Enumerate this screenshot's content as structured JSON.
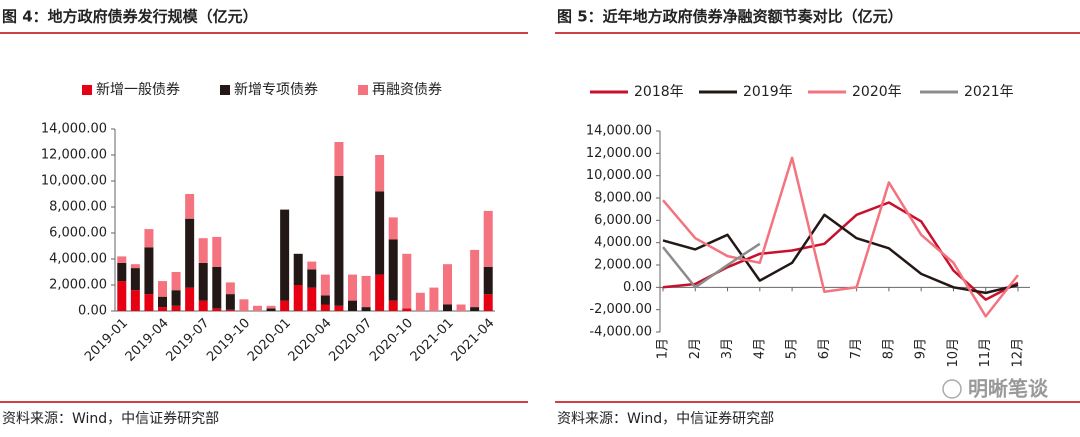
{
  "chart_data": [
    {
      "type": "bar",
      "stacked": true,
      "title": "图 4：地方政府债券发行规模（亿元）",
      "source": "资料来源：Wind，中信证券研究部",
      "categories": [
        "2019-01",
        null,
        null,
        "2019-04",
        null,
        null,
        "2019-07",
        null,
        null,
        "2019-10",
        null,
        null,
        "2020-01",
        null,
        null,
        "2020-04",
        null,
        null,
        "2020-07",
        null,
        null,
        "2020-10",
        null,
        null,
        "2021-01",
        null,
        null,
        "2021-04"
      ],
      "series": [
        {
          "name": "新增一般债券",
          "color": "#e60012",
          "values": [
            2300,
            1600,
            1300,
            300,
            400,
            1800,
            800,
            200,
            100,
            0,
            0,
            0,
            800,
            2000,
            1800,
            500,
            400,
            0,
            0,
            2800,
            800,
            200,
            0,
            0,
            0,
            0,
            0,
            1300
          ]
        },
        {
          "name": "新增专项债券",
          "color": "#231815",
          "values": [
            1400,
            1700,
            3600,
            800,
            1200,
            5300,
            2900,
            3200,
            1200,
            0,
            0,
            200,
            7000,
            2400,
            1400,
            700,
            10000,
            800,
            300,
            6400,
            4700,
            0,
            0,
            0,
            500,
            0,
            300,
            2100
          ]
        },
        {
          "name": "再融资债券",
          "color": "#f4737f",
          "values": [
            500,
            300,
            1400,
            1200,
            1400,
            1900,
            1900,
            2300,
            900,
            900,
            400,
            200,
            0,
            0,
            600,
            1600,
            2600,
            2000,
            2400,
            2800,
            1700,
            4200,
            1400,
            1800,
            3100,
            500,
            4400,
            4300
          ]
        }
      ],
      "ylim": [
        0,
        14000
      ],
      "yticks": [
        {
          "value": 0,
          "label": "0.00"
        },
        {
          "value": 2000,
          "label": "2,000.00"
        },
        {
          "value": 4000,
          "label": "4,000.00"
        },
        {
          "value": 6000,
          "label": "6,000.00"
        },
        {
          "value": 8000,
          "label": "8,000.00"
        },
        {
          "value": 10000,
          "label": "10,000.00"
        },
        {
          "value": 12000,
          "label": "12,000.00"
        },
        {
          "value": 14000,
          "label": "14,000.00"
        }
      ],
      "legend": "top"
    },
    {
      "type": "line",
      "title": "图 5：近年地方政府债券净融资额节奏对比（亿元）",
      "source": "资料来源：Wind，中信证券研究部",
      "categories": [
        "1月",
        "2月",
        "3月",
        "4月",
        "5月",
        "6月",
        "7月",
        "8月",
        "9月",
        "10月",
        "11月",
        "12月"
      ],
      "series": [
        {
          "name": "2018年",
          "color": "#c8102e",
          "values": [
            0,
            300,
            1800,
            3000,
            3300,
            3900,
            6500,
            7600,
            5900,
            1500,
            -1100,
            400
          ]
        },
        {
          "name": "2019年",
          "color": "#231815",
          "values": [
            4200,
            3400,
            4700,
            600,
            2200,
            6500,
            4400,
            3500,
            1200,
            0,
            -500,
            200
          ]
        },
        {
          "name": "2020年",
          "color": "#f4737f",
          "values": [
            7800,
            4400,
            2800,
            2200,
            11600,
            -400,
            0,
            9400,
            4700,
            2200,
            -2600,
            1100
          ]
        },
        {
          "name": "2021年",
          "color": "#8c8c8c",
          "values": [
            3600,
            0,
            2000,
            3900,
            null,
            null,
            null,
            null,
            null,
            null,
            null,
            null
          ]
        }
      ],
      "ylim": [
        -4000,
        14000
      ],
      "yticks": [
        {
          "value": -4000,
          "label": "-4,000.00"
        },
        {
          "value": -2000,
          "label": "-2,000.00"
        },
        {
          "value": 0,
          "label": "0.00"
        },
        {
          "value": 2000,
          "label": "2,000.00"
        },
        {
          "value": 4000,
          "label": "4,000.00"
        },
        {
          "value": 6000,
          "label": "6,000.00"
        },
        {
          "value": 8000,
          "label": "8,000.00"
        },
        {
          "value": 10000,
          "label": "10,000.00"
        },
        {
          "value": 12000,
          "label": "12,000.00"
        },
        {
          "value": 14000,
          "label": "14,000.00"
        }
      ],
      "legend": "top"
    }
  ],
  "watermark": "明晰笔谈"
}
